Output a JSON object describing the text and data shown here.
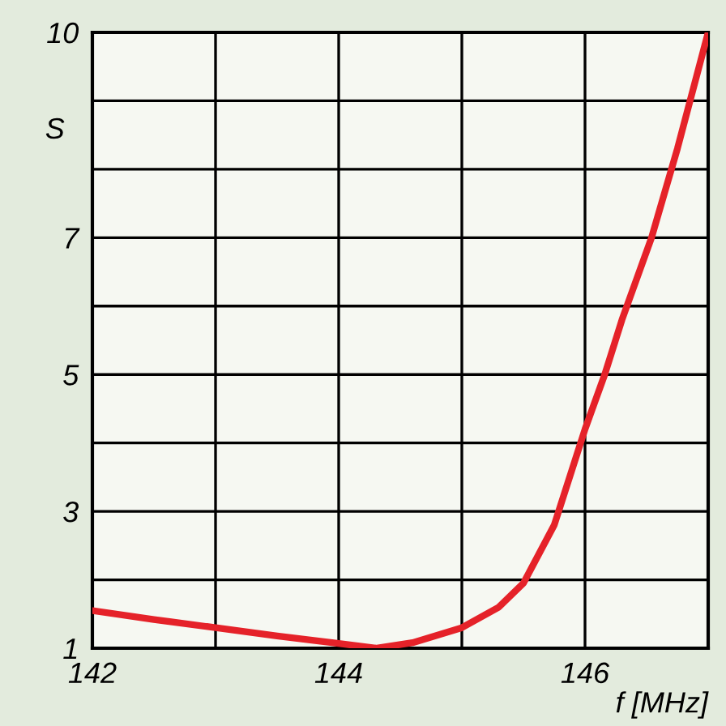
{
  "chart_data": {
    "type": "line",
    "xlabel": "f [MHz]",
    "ylabel": "S",
    "x": [
      142,
      142.5,
      143,
      143.5,
      144,
      144.3,
      144.6,
      145,
      145.3,
      145.5,
      145.75,
      146,
      146.16,
      146.3,
      146.54,
      146.75,
      147
    ],
    "series": [
      {
        "color": "#e52229",
        "values": [
          1.55,
          1.42,
          1.3,
          1.18,
          1.07,
          1.0,
          1.08,
          1.3,
          1.6,
          1.95,
          2.8,
          4.2,
          5.0,
          5.8,
          7.0,
          8.3,
          10.0
        ]
      }
    ],
    "xlim": [
      142,
      147
    ],
    "ylim": [
      1,
      10
    ],
    "xticks": [
      142,
      {
        "value": 143,
        "label": null
      },
      144,
      {
        "value": 145,
        "label": null
      },
      146,
      {
        "value": 147,
        "label": null
      }
    ],
    "yticks": [
      1,
      {
        "value": 2,
        "label": null
      },
      3,
      {
        "value": 4,
        "label": null
      },
      5,
      {
        "value": 6,
        "label": null
      },
      7,
      {
        "value": 8,
        "label": null
      },
      {
        "value": 9,
        "label": null
      },
      10
    ],
    "grid": true,
    "legend": false,
    "line_style": "solid",
    "marker": "none"
  }
}
